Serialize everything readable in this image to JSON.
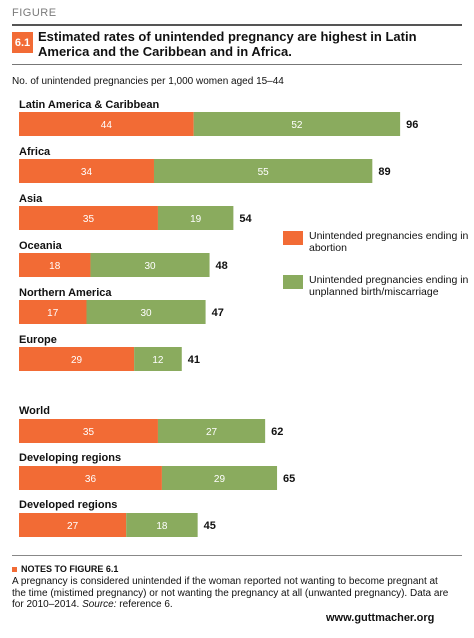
{
  "figure_label": "FIGURE",
  "figure_number": "6.1",
  "title": "Estimated rates of unintended pregnancy are highest in Latin America and the Caribbean and in Africa.",
  "subtitle": "No. of unintended pregnancies per 1,000 women aged 15–44",
  "colors": {
    "abortion": "#f26b35",
    "birth": "#8aab5e"
  },
  "legend": [
    {
      "label": "Unintended pregnancies ending in abortion",
      "color": "#f26b35"
    },
    {
      "label": "Unintended pregnancies ending in unplanned birth/miscarriage",
      "color": "#8aab5e"
    }
  ],
  "chart_data": {
    "type": "bar",
    "orientation": "horizontal",
    "stacked": true,
    "categories": [
      "Latin America & Caribbean",
      "Africa",
      "Asia",
      "Oceania",
      "Northern America",
      "Europe",
      "World",
      "Developing regions",
      "Developed regions"
    ],
    "series": [
      {
        "name": "Unintended pregnancies ending in abortion",
        "values": [
          44,
          34,
          35,
          18,
          17,
          29,
          35,
          36,
          27
        ]
      },
      {
        "name": "Unintended pregnancies ending in unplanned birth/miscarriage",
        "values": [
          52,
          55,
          19,
          30,
          30,
          12,
          27,
          29,
          18
        ]
      }
    ],
    "totals": [
      96,
      89,
      54,
      48,
      47,
      41,
      62,
      65,
      45
    ],
    "xlim": [
      0,
      100
    ],
    "grid": false,
    "legend_position": "right"
  },
  "notes": {
    "heading": "NOTES TO FIGURE 6.1",
    "body": "A pregnancy is considered unintended if the woman reported not wanting to become pregnant at the time (mistimed pregnancy) or not wanting the pregnancy at all (unwanted pregnancy). Data are for 2010–2014. ",
    "source_label": "Source:",
    "source_text": " reference 6."
  },
  "url": "www.guttmacher.org"
}
